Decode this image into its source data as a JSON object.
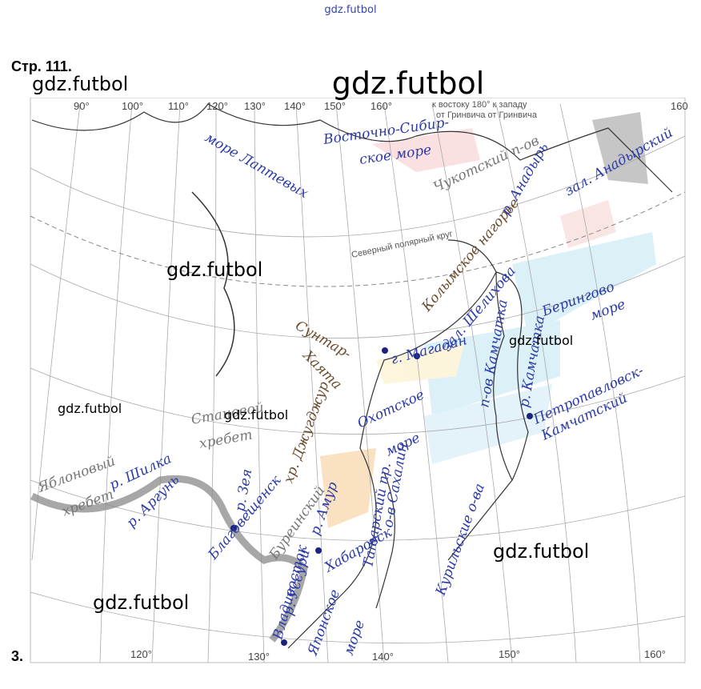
{
  "header": {
    "site": "gdz.futbol",
    "page": "Стр. 111.",
    "big_watermark": "gdz.futbol",
    "item": "3."
  },
  "watermarks": [
    "gdz.futbol",
    "gdz.futbol",
    "gdz.futbol",
    "gdz.futbol",
    "gdz.futbol",
    "gdz.futbol",
    "gdz.futbol"
  ],
  "map": {
    "top_degrees": [
      "90°",
      "100°",
      "110°",
      "120°",
      "130°",
      "140°",
      "150°",
      "160°",
      "160"
    ],
    "bottom_degrees": [
      "120°",
      "130°",
      "140°",
      "150°",
      "160°"
    ],
    "printed_labels": [
      "к востоку 180° к западу",
      "от Гринвича   от Гринвича",
      "Северный полярный круг"
    ],
    "handwritten_labels": [
      "море Лаптевых",
      "Восточно-Сибир-",
      "ское море",
      "Чукотский п-ов",
      "р. Анадырь",
      "зал. Анадырский",
      "Берингово",
      "море",
      "Колымское нагорье",
      "г. Магадан",
      "зал. Шелихова",
      "п-ов Камчатка",
      "р. Камчатка",
      "Петропавловск-",
      "Камчатский",
      "Сунтар-",
      "Хаята",
      "Охотское",
      "море",
      "хр. Джугджур",
      "Становой",
      "хребет",
      "Яблоновый",
      "хребет",
      "р. Шилка",
      "р. Аргунь",
      "р. Зея",
      "Благовещенск",
      "Буреинский",
      "р. Амур",
      "о-в Сахалин",
      "Татарский пр.",
      "Курильские о-ва",
      "Японское",
      "море",
      "Хабаровск",
      "р. Уссури",
      "Владивосток"
    ]
  }
}
